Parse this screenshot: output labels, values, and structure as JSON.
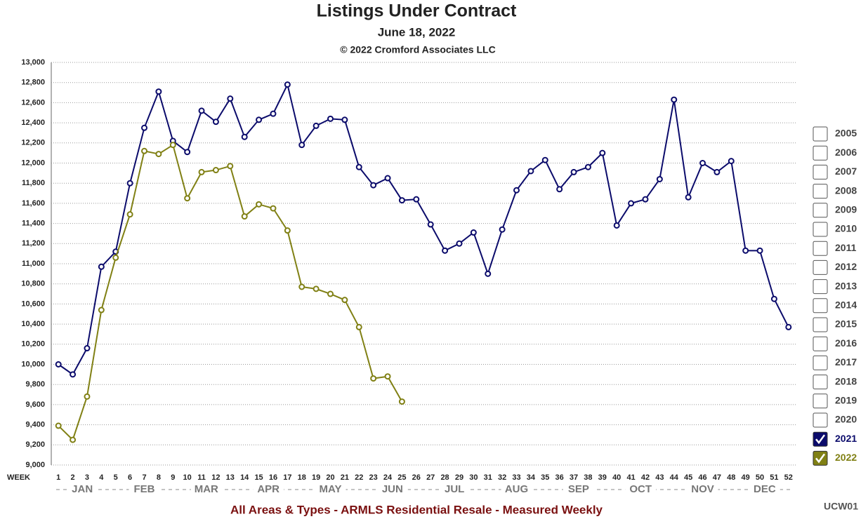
{
  "chart_data": {
    "type": "line",
    "title": "Listings Under Contract",
    "subtitle": "June 18, 2022",
    "copyright": "© 2022 Cromford Associates LLC",
    "x_label": "WEEK",
    "footer": "All Areas & Types - ARMLS Residential Resale - Measured Weekly",
    "code": "UCW01",
    "months": [
      "JAN",
      "FEB",
      "MAR",
      "APR",
      "MAY",
      "JUN",
      "JUL",
      "AUG",
      "SEP",
      "OCT",
      "NOV",
      "DEC"
    ],
    "x": [
      1,
      2,
      3,
      4,
      5,
      6,
      7,
      8,
      9,
      10,
      11,
      12,
      13,
      14,
      15,
      16,
      17,
      18,
      19,
      20,
      21,
      22,
      23,
      24,
      25,
      26,
      27,
      28,
      29,
      30,
      31,
      32,
      33,
      34,
      35,
      36,
      37,
      38,
      39,
      40,
      41,
      42,
      43,
      44,
      45,
      46,
      47,
      48,
      49,
      50,
      51,
      52
    ],
    "xlim": [
      0.5,
      52.5
    ],
    "xticks": [
      1,
      2,
      3,
      4,
      5,
      6,
      7,
      8,
      9,
      10,
      11,
      12,
      13,
      14,
      15,
      16,
      17,
      18,
      19,
      20,
      21,
      22,
      23,
      24,
      25,
      26,
      27,
      28,
      29,
      30,
      31,
      32,
      33,
      34,
      35,
      36,
      37,
      38,
      39,
      40,
      41,
      42,
      43,
      44,
      45,
      46,
      47,
      48,
      49,
      50,
      51,
      52
    ],
    "ylim": [
      9000,
      13000
    ],
    "yticks": [
      {
        "value": 9000,
        "label": "9,000"
      },
      {
        "value": 9200,
        "label": "9,200"
      },
      {
        "value": 9400,
        "label": "9,400"
      },
      {
        "value": 9600,
        "label": "9,600"
      },
      {
        "value": 9800,
        "label": "9,800"
      },
      {
        "value": 10000,
        "label": "10,000"
      },
      {
        "value": 10200,
        "label": "10,200"
      },
      {
        "value": 10400,
        "label": "10,400"
      },
      {
        "value": 10600,
        "label": "10,600"
      },
      {
        "value": 10800,
        "label": "10,800"
      },
      {
        "value": 11000,
        "label": "11,000"
      },
      {
        "value": 11200,
        "label": "11,200"
      },
      {
        "value": 11400,
        "label": "11,400"
      },
      {
        "value": 11600,
        "label": "11,600"
      },
      {
        "value": 11800,
        "label": "11,800"
      },
      {
        "value": 12000,
        "label": "12,000"
      },
      {
        "value": 12200,
        "label": "12,200"
      },
      {
        "value": 12400,
        "label": "12,400"
      },
      {
        "value": 12600,
        "label": "12,600"
      },
      {
        "value": 12800,
        "label": "12,800"
      },
      {
        "value": 13000,
        "label": "13,000"
      }
    ],
    "grid": true,
    "legend_unchecked": [
      "2005",
      "2006",
      "2007",
      "2008",
      "2009",
      "2010",
      "2011",
      "2012",
      "2013",
      "2014",
      "2015",
      "2016",
      "2017",
      "2018",
      "2019",
      "2020"
    ],
    "series": [
      {
        "name": "2021",
        "color": "#0b0b6b",
        "values": [
          10000,
          9900,
          10160,
          10970,
          11120,
          11800,
          12350,
          12710,
          12220,
          12110,
          12520,
          12410,
          12640,
          12260,
          12430,
          12490,
          12780,
          12180,
          12370,
          12440,
          12430,
          11960,
          11780,
          11850,
          11630,
          11640,
          11390,
          11130,
          11200,
          11310,
          10900,
          11340,
          11730,
          11920,
          12030,
          11740,
          11910,
          11960,
          12100,
          11380,
          11600,
          11640,
          11840,
          12630,
          11660,
          12000,
          11910,
          12020,
          11130,
          11130,
          10650,
          10370
        ]
      },
      {
        "name": "2022",
        "color": "#808014",
        "values": [
          9390,
          9250,
          9680,
          10540,
          11060,
          11490,
          12120,
          12090,
          12180,
          11650,
          11910,
          11930,
          11970,
          11470,
          11590,
          11550,
          11330,
          10770,
          10750,
          10700,
          10640,
          10370,
          9860,
          9880,
          9630,
          null,
          null,
          null,
          null,
          null,
          null,
          null,
          null,
          null,
          null,
          null,
          null,
          null,
          null,
          null,
          null,
          null,
          null,
          null,
          null,
          null,
          null,
          null,
          null,
          null,
          null,
          null
        ]
      }
    ]
  }
}
